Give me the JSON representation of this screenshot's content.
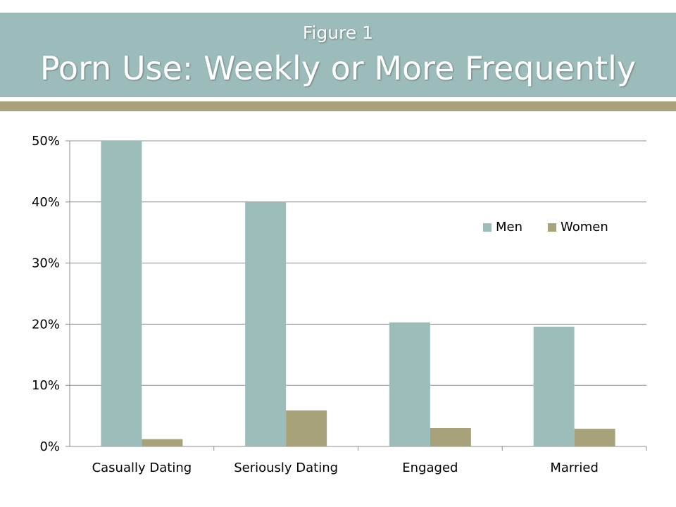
{
  "header": {
    "subtitle": "Figure 1",
    "title": "Porn Use: Weekly or More Frequently"
  },
  "colors": {
    "header_bg": "#9cbcbb",
    "accent_bar": "#a8a27b",
    "men": "#9dbdbb",
    "women": "#a8a27b",
    "grid": "#8c8c8c"
  },
  "chart_data": {
    "type": "bar",
    "categories": [
      "Casually Dating",
      "Seriously Dating",
      "Engaged",
      "Married"
    ],
    "series": [
      {
        "name": "Men",
        "values": [
          50,
          40,
          20.3,
          19.6
        ]
      },
      {
        "name": "Women",
        "values": [
          1.2,
          5.9,
          3.0,
          2.9
        ]
      }
    ],
    "y_ticks": [
      "0%",
      "10%",
      "20%",
      "30%",
      "40%",
      "50%"
    ],
    "ylim": [
      0,
      50
    ],
    "grid": true,
    "legend_position": "right"
  }
}
